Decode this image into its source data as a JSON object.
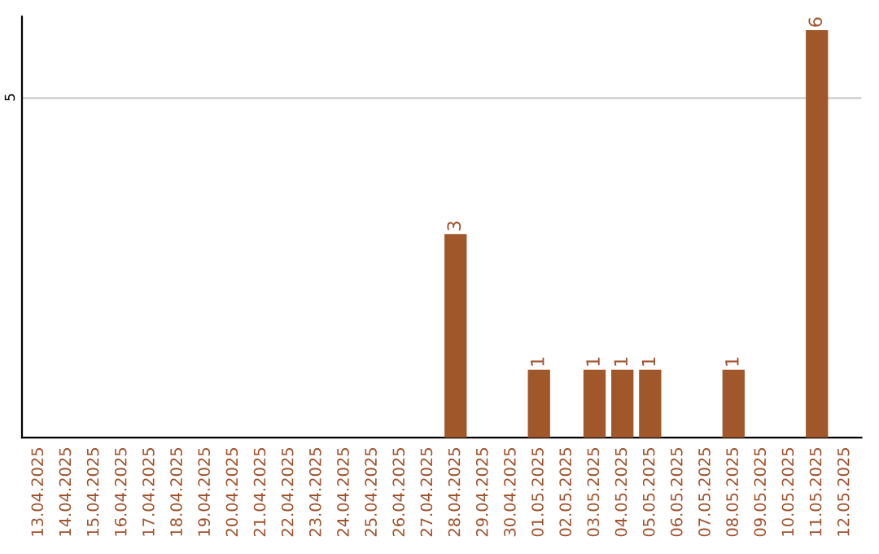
{
  "chart_data": {
    "type": "bar",
    "categories": [
      "13.04.2025",
      "14.04.2025",
      "15.04.2025",
      "16.04.2025",
      "17.04.2025",
      "18.04.2025",
      "19.04.2025",
      "20.04.2025",
      "21.04.2025",
      "22.04.2025",
      "23.04.2025",
      "24.04.2025",
      "25.04.2025",
      "26.04.2025",
      "27.04.2025",
      "28.04.2025",
      "29.04.2025",
      "30.04.2025",
      "01.05.2025",
      "02.05.2025",
      "03.05.2025",
      "04.05.2025",
      "05.05.2025",
      "06.05.2025",
      "07.05.2025",
      "08.05.2025",
      "09.05.2025",
      "10.05.2025",
      "11.05.2025",
      "12.05.2025"
    ],
    "values": [
      null,
      null,
      null,
      null,
      null,
      null,
      null,
      null,
      null,
      null,
      null,
      null,
      null,
      null,
      null,
      3,
      null,
      null,
      1,
      null,
      1,
      1,
      1,
      null,
      null,
      1,
      null,
      null,
      6,
      null
    ],
    "data_labels": true,
    "color": "#a0572a",
    "ylim": [
      0,
      6.2
    ],
    "yticks": [
      5
    ],
    "grid": "y"
  }
}
